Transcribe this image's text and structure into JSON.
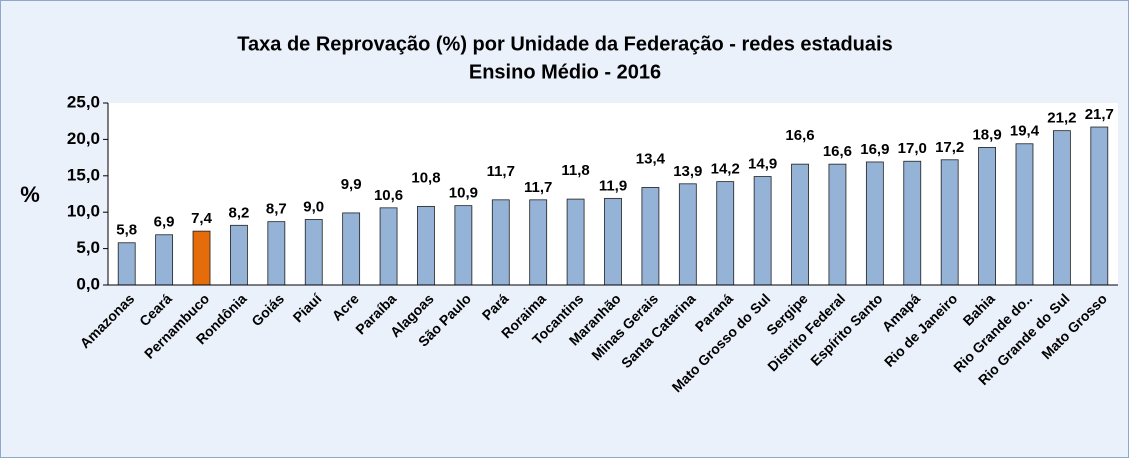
{
  "chart_data": {
    "type": "bar",
    "title": "Taxa de Reprovação (%) por Unidade da Federação - redes estaduais",
    "subtitle": "Ensino Médio - 2016",
    "y_label": "%",
    "categories": [
      "Amazonas",
      "Ceará",
      "Pernambuco",
      "Rondônia",
      "Goiás",
      "Piauí",
      "Acre",
      "Paraíba",
      "Alagoas",
      "São Paulo",
      "Pará",
      "Roraima",
      "Tocantins",
      "Maranhão",
      "Minas Gerais",
      "Santa Catarina",
      "Paraná",
      "Mato Grosso do Sul",
      "Sergipe",
      "Distrito Federal",
      "Espírito Santo",
      "Amapá",
      "Rio de Janeiro",
      "Bahia",
      "Rio Grande do..",
      "Rio Grande do Sul",
      "Mato Grosso"
    ],
    "values": [
      5.8,
      6.9,
      7.4,
      8.2,
      8.7,
      9.0,
      9.9,
      10.6,
      10.8,
      10.9,
      11.7,
      11.7,
      11.8,
      11.9,
      13.4,
      13.9,
      14.2,
      14.9,
      16.6,
      16.6,
      16.9,
      17.0,
      17.2,
      18.9,
      19.4,
      21.2,
      21.7
    ],
    "value_labels": [
      "5,8",
      "6,9",
      "7,4",
      "8,2",
      "8,7",
      "9,0",
      "9,9",
      "10,6",
      "10,8",
      "10,9",
      "11,7",
      "11,7",
      "11,8",
      "11,9",
      "13,4",
      "13,9",
      "14,2",
      "14,9",
      "16,6",
      "16,6",
      "16,9",
      "17,0",
      "17,2",
      "18,9",
      "19,4",
      "21,2",
      "21,7"
    ],
    "colors": [
      "#95b3d7",
      "#95b3d7",
      "#e46c0a",
      "#95b3d7",
      "#95b3d7",
      "#95b3d7",
      "#95b3d7",
      "#95b3d7",
      "#95b3d7",
      "#95b3d7",
      "#95b3d7",
      "#95b3d7",
      "#95b3d7",
      "#95b3d7",
      "#95b3d7",
      "#95b3d7",
      "#95b3d7",
      "#95b3d7",
      "#95b3d7",
      "#95b3d7",
      "#95b3d7",
      "#95b3d7",
      "#95b3d7",
      "#95b3d7",
      "#95b3d7",
      "#95b3d7",
      "#95b3d7"
    ],
    "ylim": [
      0,
      25
    ],
    "yticks": [
      {
        "value": 0,
        "label": "0,0"
      },
      {
        "value": 5,
        "label": "5,0"
      },
      {
        "value": 10,
        "label": "10,0"
      },
      {
        "value": 15,
        "label": "15,0"
      },
      {
        "value": 20,
        "label": "20,0"
      },
      {
        "value": 25,
        "label": "25,0"
      }
    ]
  }
}
